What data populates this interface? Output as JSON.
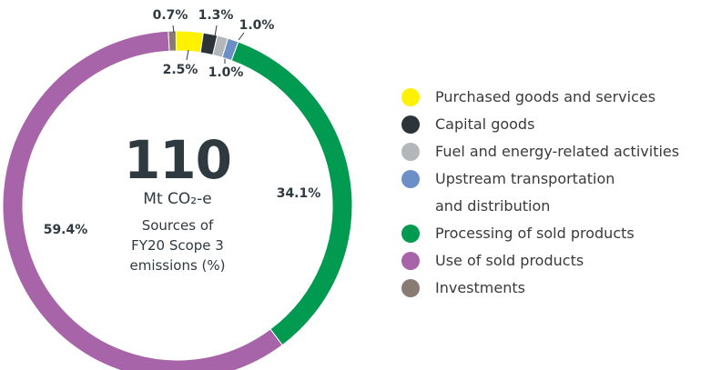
{
  "chart_data": {
    "type": "donut",
    "center_value": "110",
    "unit": "Mt CO₂-e",
    "subtitle": "Sources of\nFY20 Scope 3\nemissions (%)",
    "series": [
      {
        "name": "Purchased goods and services",
        "color": "#fff200",
        "values": [
          2.5
        ],
        "value_labels": [
          "2.5%"
        ]
      },
      {
        "name": "Capital goods",
        "color": "#2d3439",
        "values": [
          1.3
        ],
        "value_labels": [
          "1.3%"
        ]
      },
      {
        "name": "Fuel and energy-related activities",
        "color": "#b4b7b9",
        "values": [
          1.0
        ],
        "value_labels": [
          "1.0%"
        ]
      },
      {
        "name": "Upstream transportation\nand distribution",
        "color": "#6c8fc8",
        "values": [
          1.0
        ],
        "value_labels": [
          "1.0%"
        ]
      },
      {
        "name": "Processing of sold products",
        "color": "#009a50",
        "values": [
          34.1
        ],
        "value_labels": [
          "34.1%"
        ]
      },
      {
        "name": "Use of sold products",
        "color": "#a864a8",
        "values": [
          59.4
        ],
        "value_labels": [
          "59.4%"
        ]
      },
      {
        "name": "Investments",
        "color": "#8a7b72",
        "values": [
          0.7
        ],
        "value_labels": [
          "0.7%"
        ]
      }
    ]
  }
}
